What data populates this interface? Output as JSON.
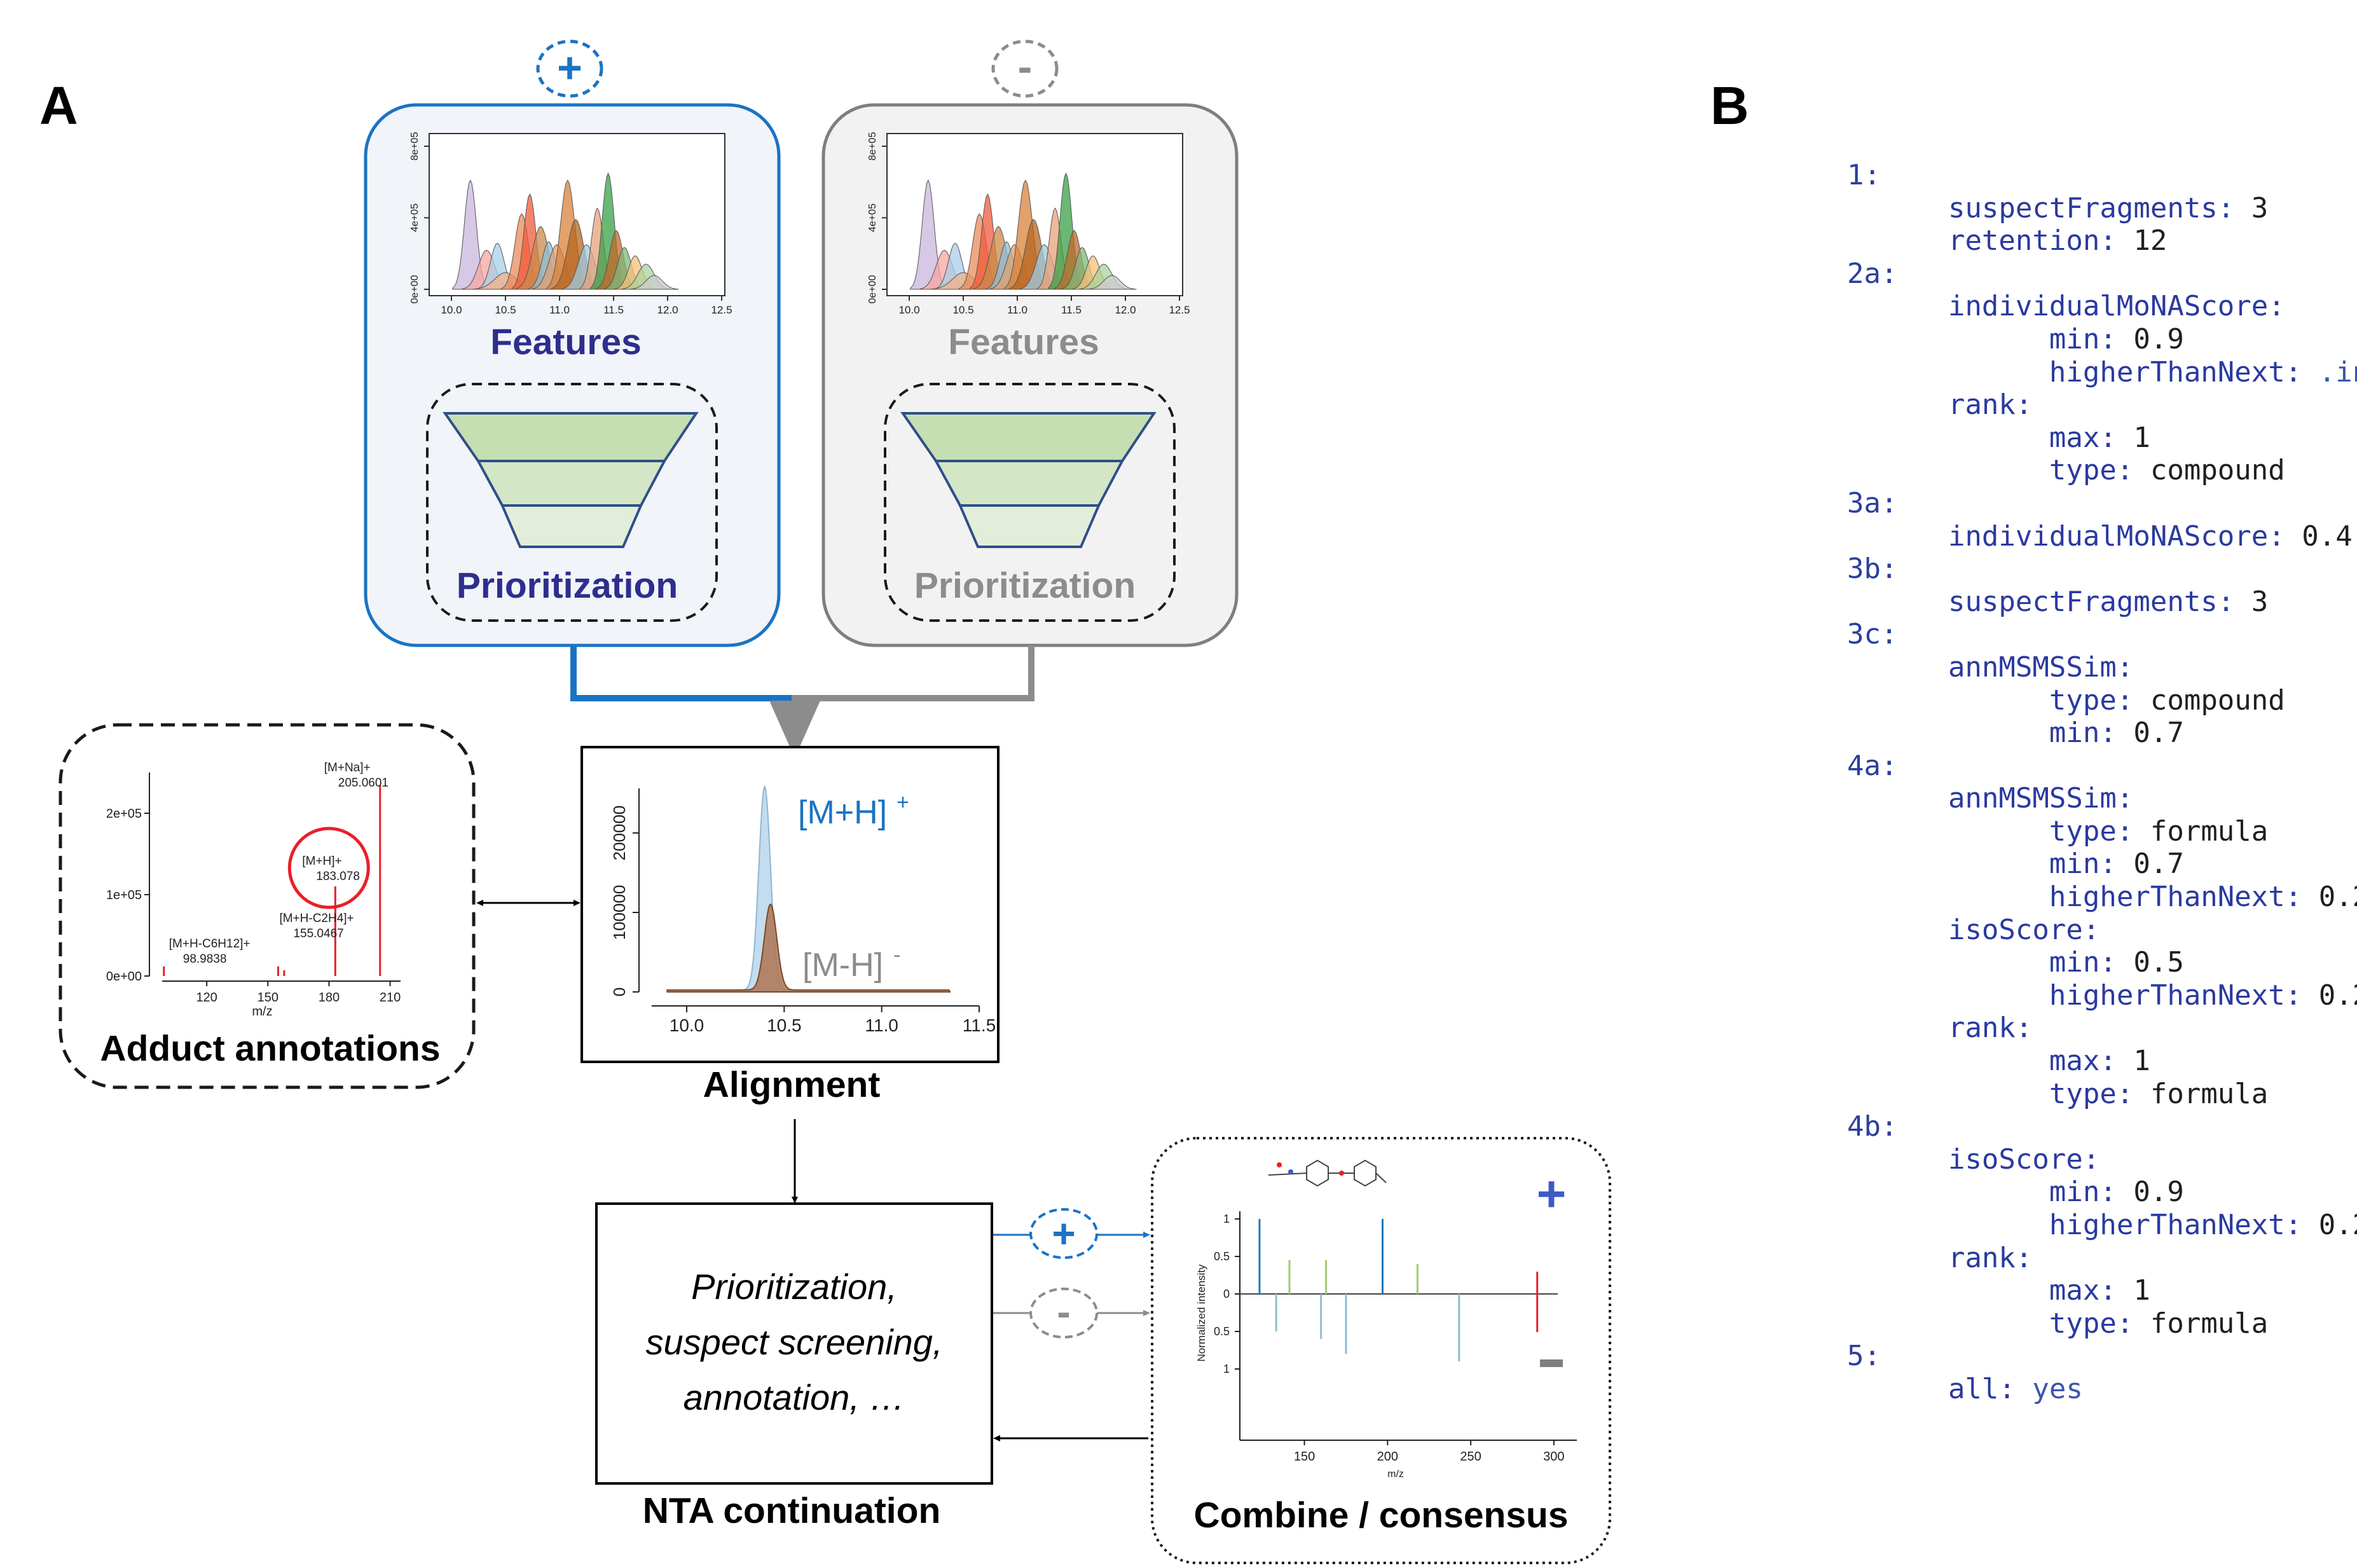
{
  "panel_a": {
    "letter": "A",
    "pos_symbol": "+",
    "neg_symbol": "-",
    "pos_box": {
      "features_label": "Features",
      "prioritization_label": "Prioritization"
    },
    "neg_box": {
      "features_label": "Features",
      "prioritization_label": "Prioritization"
    },
    "feature_chart": {
      "x_ticks": [
        "10.0",
        "10.5",
        "11.0",
        "11.5",
        "12.0",
        "12.5"
      ],
      "y_ticks": [
        "0e+00",
        "4e+05",
        "8e+05"
      ]
    },
    "adduct": {
      "caption": "Adduct annotations",
      "x_label": "m/z",
      "x_ticks": [
        "120",
        "150",
        "180",
        "210"
      ],
      "y_ticks": [
        "0e+00",
        "1e+05",
        "2e+05"
      ],
      "peaks": [
        {
          "label": "[M+H-C6H12]+",
          "mz": "98.9838"
        },
        {
          "label": "[M+H-C2H4]+",
          "mz": "155.0467"
        },
        {
          "label": "[M+H]+",
          "mz": "183.078"
        },
        {
          "label": "[M+Na]+",
          "mz": "205.0601"
        }
      ]
    },
    "alignment": {
      "caption": "Alignment",
      "pos_ion": "[M+H]",
      "pos_sup": "+",
      "neg_ion": "[M-H]",
      "neg_sup": "-",
      "x_ticks": [
        "10.0",
        "10.5",
        "11.0",
        "11.5"
      ],
      "y_ticks": [
        "0",
        "100000",
        "200000"
      ]
    },
    "nta": {
      "caption": "NTA continuation",
      "lines": [
        "Prioritization,",
        "suspect screening,",
        "annotation, …"
      ]
    },
    "consensus": {
      "caption": "Combine / consensus",
      "pos_symbol": "+",
      "neg_symbol": "-",
      "y_label": "Normalized intensity",
      "x_label": "m/z",
      "x_ticks": [
        "150",
        "200",
        "250",
        "300"
      ],
      "y_ticks": [
        "1",
        "0.5",
        "0",
        "0.5",
        "1"
      ]
    },
    "arrow_pos_symbol": "+",
    "arrow_neg_symbol": "-"
  },
  "panel_b": {
    "letter": "B",
    "lines": [
      {
        "indent": 0,
        "key": "1:",
        "value": "",
        "kind": "ln"
      },
      {
        "indent": 1,
        "key": "suspectFragments:",
        "value": "3"
      },
      {
        "indent": 1,
        "key": "retention:",
        "value": "12"
      },
      {
        "indent": 0,
        "key": "2a:",
        "value": "",
        "kind": "ln"
      },
      {
        "indent": 1,
        "key": "individualMoNAScore:",
        "value": ""
      },
      {
        "indent": 2,
        "key": "min:",
        "value": "0.9"
      },
      {
        "indent": 2,
        "key": "higherThanNext:",
        "value": ".inf",
        "kind": "vb"
      },
      {
        "indent": 1,
        "key": "rank:",
        "value": ""
      },
      {
        "indent": 2,
        "key": "max:",
        "value": "1"
      },
      {
        "indent": 2,
        "key": "type:",
        "value": "compound"
      },
      {
        "indent": 0,
        "key": "3a:",
        "value": "",
        "kind": "ln"
      },
      {
        "indent": 1,
        "key": "individualMoNAScore:",
        "value": "0.4"
      },
      {
        "indent": 0,
        "key": "3b:",
        "value": "",
        "kind": "ln"
      },
      {
        "indent": 1,
        "key": "suspectFragments:",
        "value": "3"
      },
      {
        "indent": 0,
        "key": "3c:",
        "value": "",
        "kind": "ln"
      },
      {
        "indent": 1,
        "key": "annMSMSSim:",
        "value": ""
      },
      {
        "indent": 2,
        "key": "type:",
        "value": "compound"
      },
      {
        "indent": 2,
        "key": "min:",
        "value": "0.7"
      },
      {
        "indent": 0,
        "key": "4a:",
        "value": "",
        "kind": "ln"
      },
      {
        "indent": 1,
        "key": "annMSMSSim:",
        "value": ""
      },
      {
        "indent": 2,
        "key": "type:",
        "value": "formula"
      },
      {
        "indent": 2,
        "key": "min:",
        "value": "0.7"
      },
      {
        "indent": 2,
        "key": "higherThanNext:",
        "value": "0.2"
      },
      {
        "indent": 1,
        "key": "isoScore:",
        "value": ""
      },
      {
        "indent": 2,
        "key": "min:",
        "value": "0.5"
      },
      {
        "indent": 2,
        "key": "higherThanNext:",
        "value": "0.2"
      },
      {
        "indent": 1,
        "key": "rank:",
        "value": ""
      },
      {
        "indent": 2,
        "key": "max:",
        "value": "1"
      },
      {
        "indent": 2,
        "key": "type:",
        "value": "formula"
      },
      {
        "indent": 0,
        "key": "4b:",
        "value": "",
        "kind": "ln"
      },
      {
        "indent": 1,
        "key": "isoScore:",
        "value": ""
      },
      {
        "indent": 2,
        "key": "min:",
        "value": "0.9"
      },
      {
        "indent": 2,
        "key": "higherThanNext:",
        "value": "0.2"
      },
      {
        "indent": 1,
        "key": "rank:",
        "value": ""
      },
      {
        "indent": 2,
        "key": "max:",
        "value": "1"
      },
      {
        "indent": 2,
        "key": "type:",
        "value": "formula"
      },
      {
        "indent": 0,
        "key": "5:",
        "value": "",
        "kind": "ln"
      },
      {
        "indent": 1,
        "key": "all:",
        "value": "yes",
        "kind": "vb"
      }
    ]
  },
  "colors": {
    "positive": "#1a73c4",
    "negative": "#8c8c8c",
    "features_pos": "#2e2e8c",
    "features_neg": "#8c8c8c",
    "funnel_fill": "#c5dfb3",
    "funnel_stroke": "#2f4f8a",
    "red": "#e8202a",
    "alignment_pos": "#bcd8ec",
    "alignment_neg": "#b07a5a"
  }
}
